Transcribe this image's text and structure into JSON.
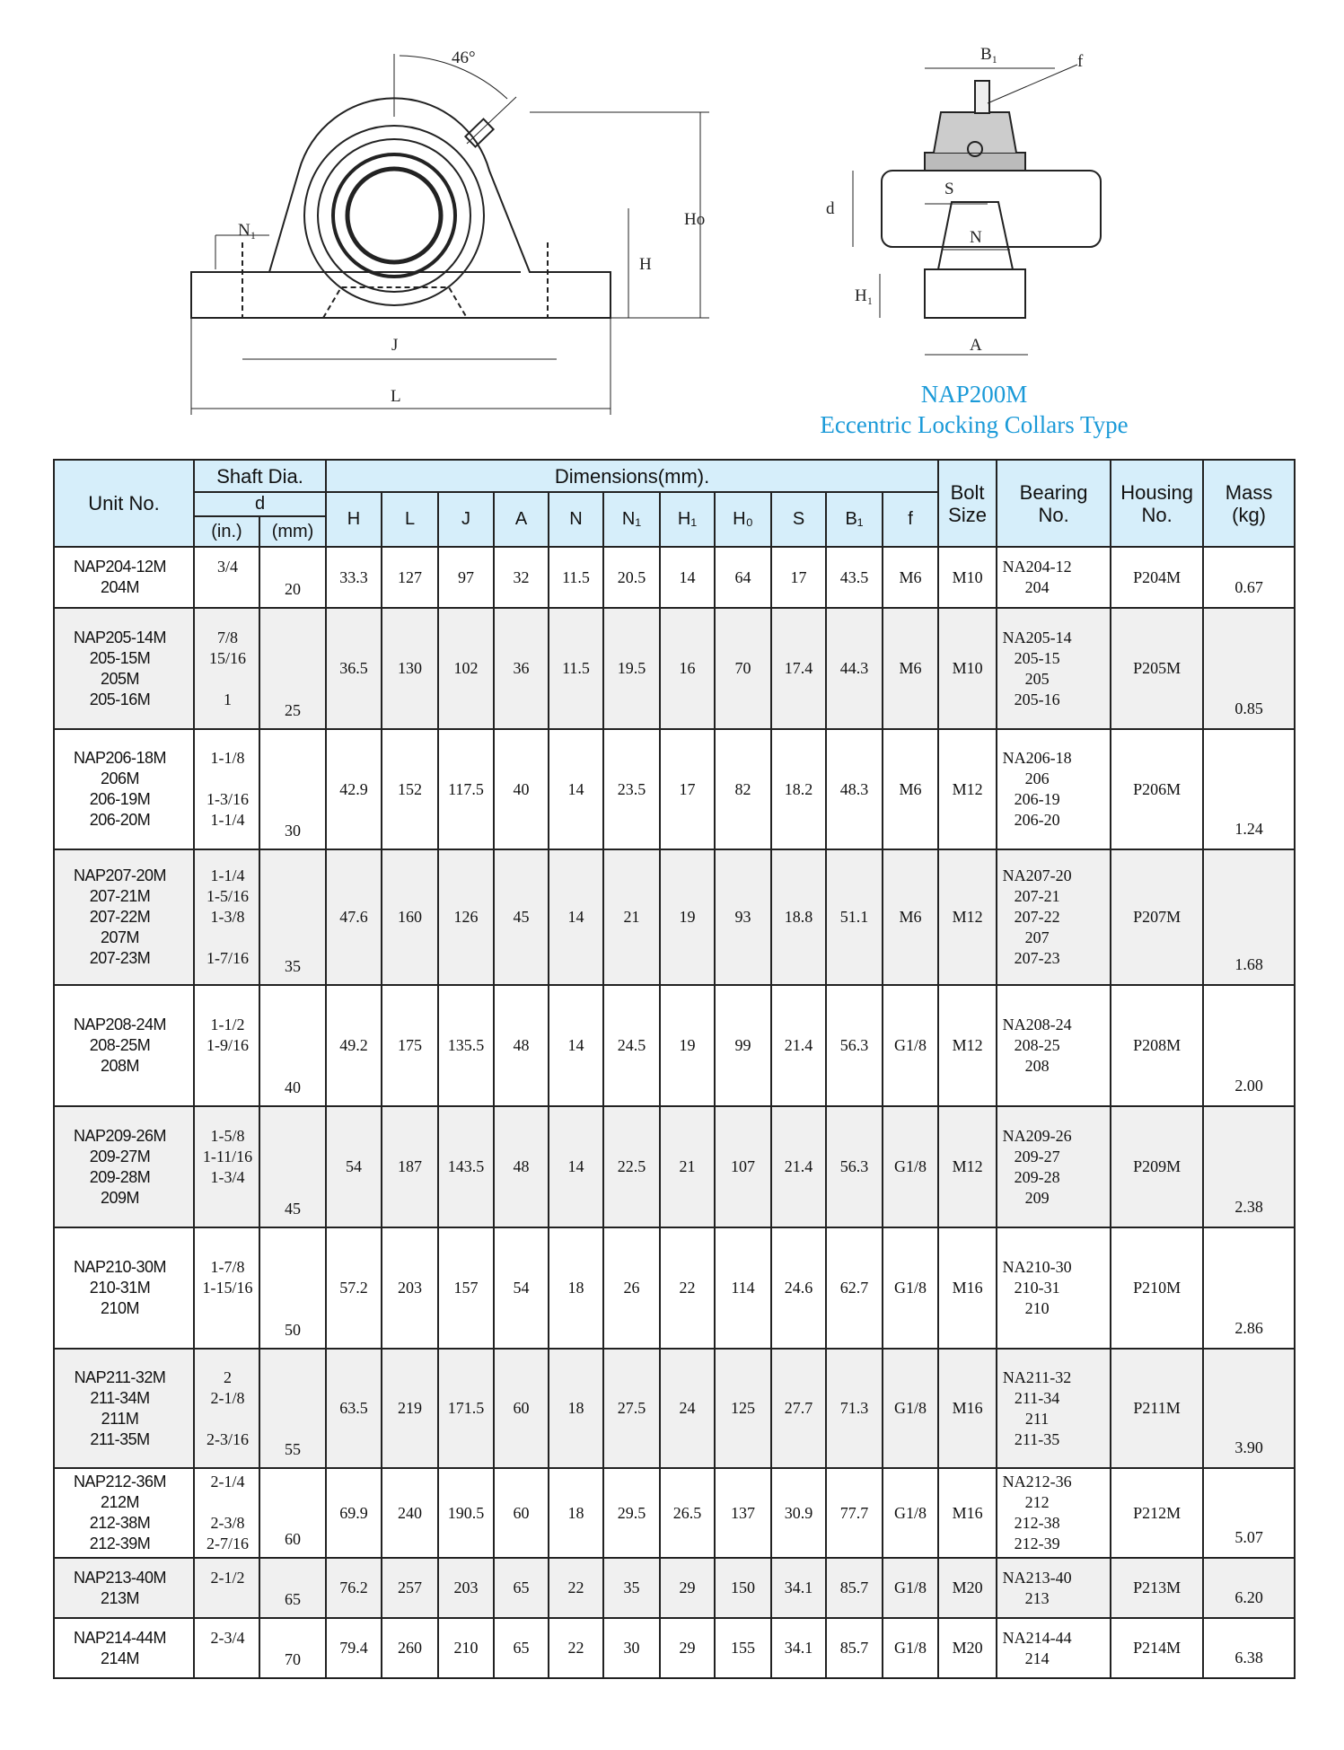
{
  "drawing": {
    "angle_label": "46°",
    "labels": {
      "N1": "N₁",
      "J": "J",
      "L": "L",
      "H": "H",
      "Ho": "Ho",
      "B1": "B₁",
      "f": "f",
      "S": "S",
      "N": "N",
      "d": "d",
      "H1": "H₁",
      "A": "A"
    },
    "title": "NAP200M",
    "subtitle": "Eccentric Locking Collars Type",
    "title_color": "#1b9ad8"
  },
  "table": {
    "headers": {
      "unit_no": "Unit No.",
      "shaft_dia": "Shaft Dia.",
      "d": "d",
      "in": "(in.)",
      "mm": "(mm)",
      "dimensions": "Dimensions(mm).",
      "dims": [
        "H",
        "L",
        "J",
        "A",
        "N",
        "N₁",
        "H₁",
        "H₀",
        "S",
        "B₁",
        "f"
      ],
      "bolt_size": [
        "Bolt",
        "Size"
      ],
      "bearing_no": [
        "Bearing",
        "No."
      ],
      "housing_no": [
        "Housing",
        "No."
      ],
      "mass": [
        "Mass",
        "(kg)"
      ]
    },
    "header_bg": "#d6eefa",
    "alt_row_bg": "#f0f0f0",
    "rows": [
      {
        "unit": [
          "NAP204-12M",
          "204M"
        ],
        "inch": [
          "3/4",
          ""
        ],
        "mm": "20",
        "dims": [
          "33.3",
          "127",
          "97",
          "32",
          "11.5",
          "20.5",
          "14",
          "64",
          "17",
          "43.5",
          "M6"
        ],
        "bolt": "M10",
        "bearing": [
          "NA204-12",
          "204"
        ],
        "housing": "P204M",
        "mass": "0.67"
      },
      {
        "unit": [
          "NAP205-14M",
          "205-15M",
          "205M",
          "205-16M"
        ],
        "inch": [
          "7/8",
          "15/16",
          "",
          "1"
        ],
        "mm": "25",
        "dims": [
          "36.5",
          "130",
          "102",
          "36",
          "11.5",
          "19.5",
          "16",
          "70",
          "17.4",
          "44.3",
          "M6"
        ],
        "bolt": "M10",
        "bearing": [
          "NA205-14",
          "205-15",
          "205",
          "205-16"
        ],
        "housing": "P205M",
        "mass": "0.85"
      },
      {
        "unit": [
          "NAP206-18M",
          "206M",
          "206-19M",
          "206-20M"
        ],
        "inch": [
          "1-1/8",
          "",
          "1-3/16",
          "1-1/4"
        ],
        "mm": "30",
        "dims": [
          "42.9",
          "152",
          "117.5",
          "40",
          "14",
          "23.5",
          "17",
          "82",
          "18.2",
          "48.3",
          "M6"
        ],
        "bolt": "M12",
        "bearing": [
          "NA206-18",
          "206",
          "206-19",
          "206-20"
        ],
        "housing": "P206M",
        "mass": "1.24"
      },
      {
        "unit": [
          "NAP207-20M",
          "207-21M",
          "207-22M",
          "207M",
          "207-23M"
        ],
        "inch": [
          "1-1/4",
          "1-5/16",
          "1-3/8",
          "",
          "1-7/16"
        ],
        "mm": "35",
        "dims": [
          "47.6",
          "160",
          "126",
          "45",
          "14",
          "21",
          "19",
          "93",
          "18.8",
          "51.1",
          "M6"
        ],
        "bolt": "M12",
        "bearing": [
          "NA207-20",
          "207-21",
          "207-22",
          "207",
          "207-23"
        ],
        "housing": "P207M",
        "mass": "1.68"
      },
      {
        "unit": [
          "NAP208-24M",
          "208-25M",
          "208M"
        ],
        "inch": [
          "1-1/2",
          "1-9/16",
          ""
        ],
        "mm": "40",
        "dims": [
          "49.2",
          "175",
          "135.5",
          "48",
          "14",
          "24.5",
          "19",
          "99",
          "21.4",
          "56.3",
          "G1/8"
        ],
        "bolt": "M12",
        "bearing": [
          "NA208-24",
          "208-25",
          "208"
        ],
        "housing": "P208M",
        "mass": "2.00"
      },
      {
        "unit": [
          "NAP209-26M",
          "209-27M",
          "209-28M",
          "209M"
        ],
        "inch": [
          "1-5/8",
          "1-11/16",
          "1-3/4",
          ""
        ],
        "mm": "45",
        "dims": [
          "54",
          "187",
          "143.5",
          "48",
          "14",
          "22.5",
          "21",
          "107",
          "21.4",
          "56.3",
          "G1/8"
        ],
        "bolt": "M12",
        "bearing": [
          "NA209-26",
          "209-27",
          "209-28",
          "209"
        ],
        "housing": "P209M",
        "mass": "2.38"
      },
      {
        "unit": [
          "NAP210-30M",
          "210-31M",
          "210M"
        ],
        "inch": [
          "1-7/8",
          "1-15/16",
          ""
        ],
        "mm": "50",
        "dims": [
          "57.2",
          "203",
          "157",
          "54",
          "18",
          "26",
          "22",
          "114",
          "24.6",
          "62.7",
          "G1/8"
        ],
        "bolt": "M16",
        "bearing": [
          "NA210-30",
          "210-31",
          "210"
        ],
        "housing": "P210M",
        "mass": "2.86"
      },
      {
        "unit": [
          "NAP211-32M",
          "211-34M",
          "211M",
          "211-35M"
        ],
        "inch": [
          "2",
          "2-1/8",
          "",
          "2-3/16"
        ],
        "mm": "55",
        "dims": [
          "63.5",
          "219",
          "171.5",
          "60",
          "18",
          "27.5",
          "24",
          "125",
          "27.7",
          "71.3",
          "G1/8"
        ],
        "bolt": "M16",
        "bearing": [
          "NA211-32",
          "211-34",
          "211",
          "211-35"
        ],
        "housing": "P211M",
        "mass": "3.90"
      },
      {
        "unit": [
          "NAP212-36M",
          "212M",
          "212-38M",
          "212-39M"
        ],
        "inch": [
          "2-1/4",
          "",
          "2-3/8",
          "2-7/16"
        ],
        "mm": "60",
        "dims": [
          "69.9",
          "240",
          "190.5",
          "60",
          "18",
          "29.5",
          "26.5",
          "137",
          "30.9",
          "77.7",
          "G1/8"
        ],
        "bolt": "M16",
        "bearing": [
          "NA212-36",
          "212",
          "212-38",
          "212-39"
        ],
        "housing": "P212M",
        "mass": "5.07"
      },
      {
        "unit": [
          "NAP213-40M",
          "213M"
        ],
        "inch": [
          "2-1/2",
          ""
        ],
        "mm": "65",
        "dims": [
          "76.2",
          "257",
          "203",
          "65",
          "22",
          "35",
          "29",
          "150",
          "34.1",
          "85.7",
          "G1/8"
        ],
        "bolt": "M20",
        "bearing": [
          "NA213-40",
          "213"
        ],
        "housing": "P213M",
        "mass": "6.20"
      },
      {
        "unit": [
          "NAP214-44M",
          "214M"
        ],
        "inch": [
          "2-3/4",
          ""
        ],
        "mm": "70",
        "dims": [
          "79.4",
          "260",
          "210",
          "65",
          "22",
          "30",
          "29",
          "155",
          "34.1",
          "85.7",
          "G1/8"
        ],
        "bolt": "M20",
        "bearing": [
          "NA214-44",
          "214"
        ],
        "housing": "P214M",
        "mass": "6.38"
      }
    ]
  }
}
